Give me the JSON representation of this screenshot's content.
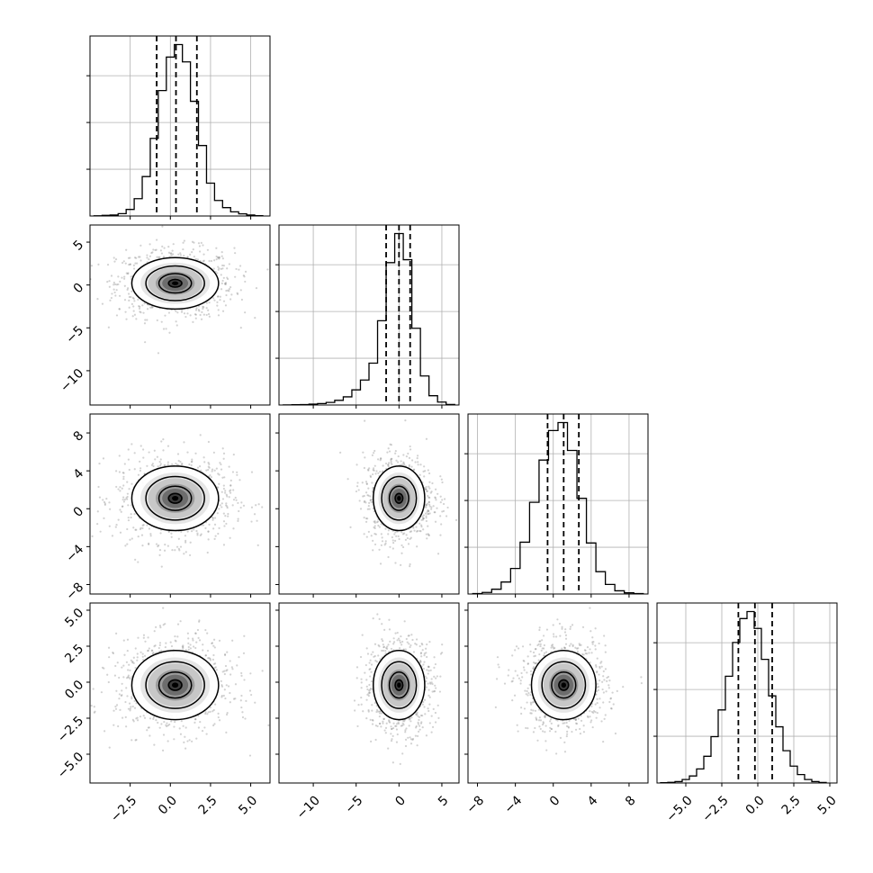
{
  "figure": {
    "style": {
      "line_color": "#000000",
      "grid_color": "#b0b0b0",
      "scatter_color": "#7f7f7f",
      "density_colors": [
        "#ffffff",
        "#e6e6e6",
        "#c7c7c7",
        "#9c9c9c",
        "#6d6d6d",
        "#3a3a3a",
        "#000000"
      ]
    },
    "variables": [
      {
        "ticks": [
          -2.5,
          0.0,
          2.5,
          5.0
        ],
        "labels": [
          "−2.5",
          "0.0",
          "2.5",
          "5.0"
        ],
        "range": [
          -5.0,
          6.2
        ],
        "quantiles": [
          -0.85,
          0.35,
          1.65
        ],
        "std": 1.35
      },
      {
        "ticks": [
          -10,
          -5,
          0,
          5
        ],
        "labels": [
          "−10",
          "−5",
          "0",
          "5"
        ],
        "range": [
          -14.0,
          7.0
        ],
        "quantiles": [
          -1.5,
          0.0,
          1.3
        ],
        "std": 1.5
      },
      {
        "ticks": [
          -8,
          -4,
          0,
          4,
          8
        ],
        "labels": [
          "−8",
          "−4",
          "0",
          "4",
          "8"
        ],
        "range": [
          -9.0,
          10.0
        ],
        "quantiles": [
          -0.6,
          1.1,
          2.7
        ],
        "std": 1.7
      },
      {
        "ticks": [
          -5.0,
          -2.5,
          0.0,
          2.5,
          5.0
        ],
        "labels": [
          "−5.0",
          "−2.5",
          "0.0",
          "2.5",
          "5.0"
        ],
        "range": [
          -7.0,
          5.5
        ],
        "quantiles": [
          -1.35,
          -0.2,
          1.0
        ],
        "std": 1.2
      }
    ]
  },
  "chart_data": [
    {
      "type": "histogram",
      "panel": "diag-0",
      "variable": 0,
      "bins_x": [
        -4.5,
        -4.0,
        -3.5,
        -3.0,
        -2.5,
        -2.0,
        -1.5,
        -1.0,
        -0.5,
        0.0,
        0.5,
        1.0,
        1.5,
        2.0,
        2.5,
        3.0,
        3.5,
        4.0,
        4.5,
        5.0,
        5.5
      ],
      "counts": [
        2,
        5,
        8,
        20,
        55,
        145,
        330,
        650,
        1050,
        1330,
        1435,
        1290,
        960,
        590,
        275,
        130,
        70,
        35,
        18,
        8,
        3
      ],
      "quantiles": [
        -0.85,
        0.35,
        1.65
      ],
      "xlim": [
        -5.0,
        6.2
      ],
      "xticks": [
        -2.5,
        0.0,
        2.5,
        5.0
      ]
    },
    {
      "type": "histogram",
      "panel": "diag-1",
      "variable": 1,
      "bins_x": [
        -13,
        -12,
        -11,
        -10,
        -9,
        -8,
        -7,
        -6,
        -5,
        -4,
        -3,
        -2,
        -1,
        0,
        1,
        2,
        3,
        4,
        5,
        6
      ],
      "counts": [
        2,
        5,
        8,
        15,
        25,
        45,
        80,
        140,
        260,
        430,
        720,
        1450,
        2450,
        2950,
        2500,
        1320,
        500,
        160,
        50,
        10
      ],
      "quantiles": [
        -1.5,
        0.0,
        1.3
      ],
      "xlim": [
        -14.0,
        7.0
      ],
      "xticks": [
        -10,
        -5,
        0,
        5
      ]
    },
    {
      "type": "histogram",
      "panel": "diag-2",
      "variable": 2,
      "bins_x": [
        -8,
        -7,
        -6,
        -5,
        -4,
        -3,
        -2,
        -1,
        0,
        1,
        2,
        3,
        4,
        5,
        6,
        7,
        8,
        9
      ],
      "counts": [
        5,
        20,
        60,
        150,
        320,
        650,
        1150,
        1680,
        2050,
        2150,
        1800,
        1200,
        640,
        280,
        120,
        40,
        15,
        5
      ],
      "quantiles": [
        -0.6,
        1.1,
        2.7
      ],
      "xlim": [
        -9.0,
        10.0
      ],
      "xticks": [
        -8,
        -4,
        0,
        4,
        8
      ]
    },
    {
      "type": "histogram",
      "panel": "diag-3",
      "variable": 3,
      "bins_x": [
        -6.5,
        -6.0,
        -5.5,
        -5.0,
        -4.5,
        -4.0,
        -3.5,
        -3.0,
        -2.5,
        -2.0,
        -1.5,
        -1.0,
        -0.5,
        0.0,
        0.5,
        1.0,
        1.5,
        2.0,
        2.5,
        3.0,
        3.5,
        4.0,
        4.5
      ],
      "counts": [
        2,
        5,
        10,
        25,
        50,
        100,
        190,
        330,
        520,
        760,
        1000,
        1170,
        1220,
        1100,
        880,
        620,
        400,
        230,
        120,
        60,
        25,
        10,
        4
      ],
      "quantiles": [
        -1.35,
        -0.2,
        1.0
      ],
      "xlim": [
        -7.0,
        5.5
      ],
      "xticks": [
        -5.0,
        -2.5,
        0.0,
        2.5,
        5.0
      ]
    },
    {
      "type": "scatter-contour",
      "panel": "pair-1-0",
      "x_var": 0,
      "y_var": 1,
      "center": [
        0.3,
        0.2
      ],
      "xlim": [
        -5.0,
        6.2
      ],
      "ylim": [
        -14.0,
        7.0
      ],
      "xticks": [
        -2.5,
        0.0,
        2.5,
        5.0
      ],
      "yticks": [
        -10,
        -5,
        0,
        5
      ]
    },
    {
      "type": "scatter-contour",
      "panel": "pair-2-0",
      "x_var": 0,
      "y_var": 2,
      "center": [
        0.3,
        1.1
      ],
      "xlim": [
        -5.0,
        6.2
      ],
      "ylim": [
        -9.0,
        10.0
      ],
      "xticks": [
        -2.5,
        0.0,
        2.5,
        5.0
      ],
      "yticks": [
        -8,
        -4,
        0,
        4,
        8
      ]
    },
    {
      "type": "scatter-contour",
      "panel": "pair-2-1",
      "x_var": 1,
      "y_var": 2,
      "center": [
        0.0,
        1.1
      ],
      "xlim": [
        -14.0,
        7.0
      ],
      "ylim": [
        -9.0,
        10.0
      ],
      "xticks": [
        -10,
        -5,
        0,
        5
      ],
      "yticks": [
        -8,
        -4,
        0,
        4,
        8
      ]
    },
    {
      "type": "scatter-contour",
      "panel": "pair-3-0",
      "x_var": 0,
      "y_var": 3,
      "center": [
        0.3,
        -0.2
      ],
      "xlim": [
        -5.0,
        6.2
      ],
      "ylim": [
        -7.0,
        5.5
      ],
      "xticks": [
        -2.5,
        0.0,
        2.5,
        5.0
      ],
      "yticks": [
        -5.0,
        -2.5,
        0.0,
        2.5,
        5.0
      ]
    },
    {
      "type": "scatter-contour",
      "panel": "pair-3-1",
      "x_var": 1,
      "y_var": 3,
      "center": [
        0.0,
        -0.2
      ],
      "xlim": [
        -14.0,
        7.0
      ],
      "ylim": [
        -7.0,
        5.5
      ],
      "xticks": [
        -10,
        -5,
        0,
        5
      ],
      "yticks": [
        -5.0,
        -2.5,
        0.0,
        2.5,
        5.0
      ]
    },
    {
      "type": "scatter-contour",
      "panel": "pair-3-2",
      "x_var": 2,
      "y_var": 3,
      "center": [
        1.1,
        -0.2
      ],
      "xlim": [
        -9.0,
        10.0
      ],
      "ylim": [
        -7.0,
        5.5
      ],
      "xticks": [
        -8,
        -4,
        0,
        4,
        8
      ],
      "yticks": [
        -5.0,
        -2.5,
        0.0,
        2.5,
        5.0
      ]
    }
  ]
}
